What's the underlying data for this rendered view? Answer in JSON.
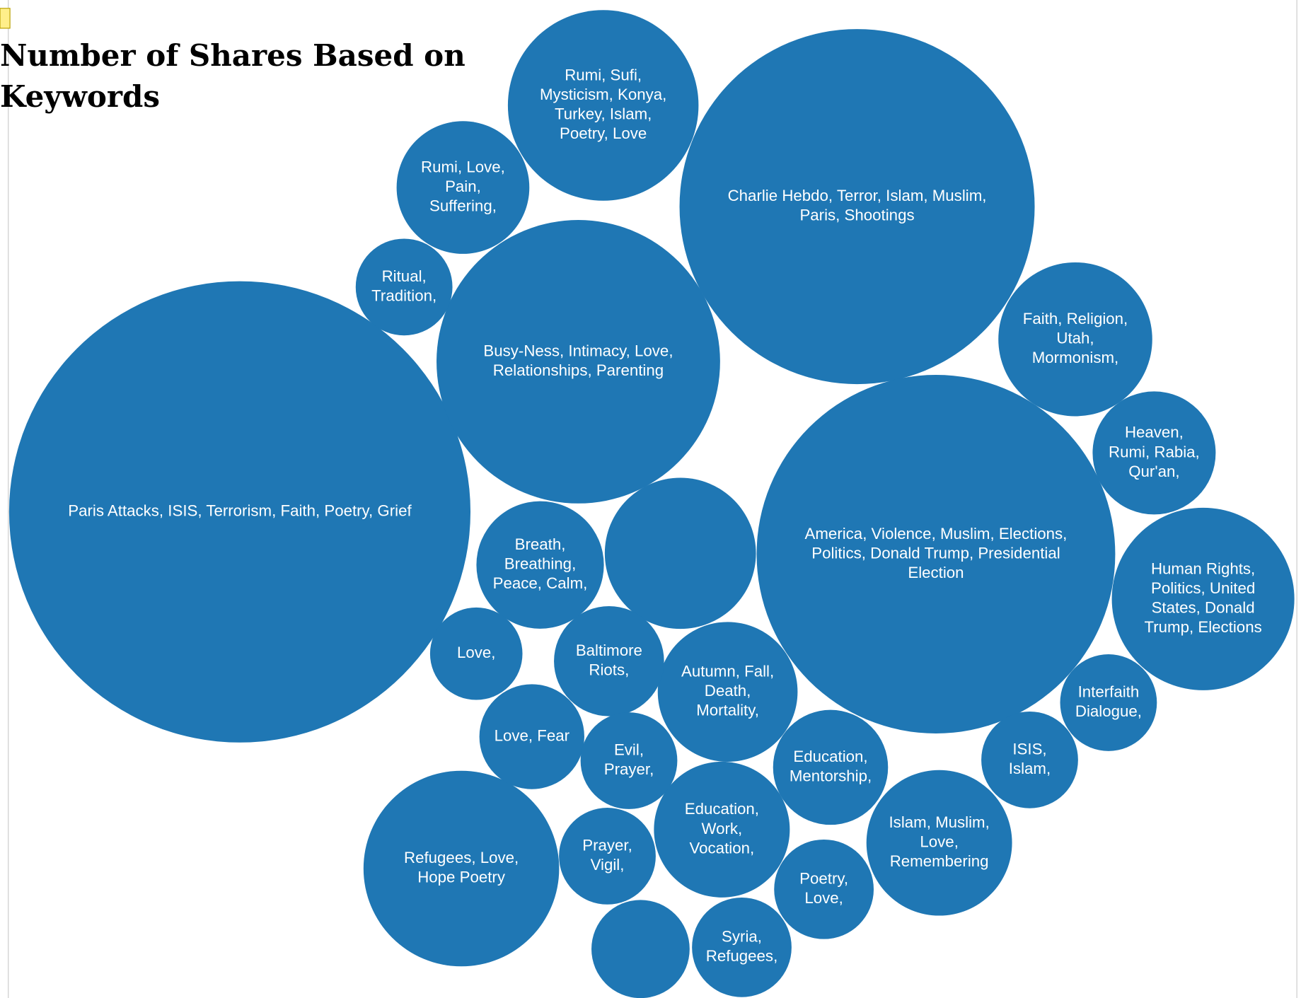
{
  "chart_data": {
    "type": "bubble",
    "title": "Number of Shares Based on Keywords",
    "color": "#1f77b4",
    "categories": [
      [
        "Paris Attacks, ISIS, Terrorism, Faith, Poetry, Grief"
      ],
      [
        "Charlie Hebdo, Terror, Islam, Muslim,",
        "Paris, Shootings"
      ],
      [
        "America, Violence, Muslim, Elections,",
        "Politics, Donald Trump, Presidential",
        "Election"
      ],
      [
        "Busy-Ness, Intimacy, Love,",
        "Relationships, Parenting"
      ],
      [
        "Rumi, Sufi,",
        "Mysticism, Konya,",
        "Turkey, Islam,",
        "Poetry, Love"
      ],
      [
        "Refugees, Love,",
        "Hope Poetry"
      ],
      [
        "Human Rights,",
        "Politics, United",
        "States, Donald",
        "Trump, Elections"
      ],
      null,
      [
        "Faith, Religion,",
        "Utah,",
        "Mormonism,"
      ],
      [
        "Islam, Muslim,",
        "Love,",
        "Remembering"
      ],
      [
        "Autumn, Fall,",
        "Death,",
        "Mortality,"
      ],
      [
        "Education,",
        "Work,",
        "Vocation,"
      ],
      [
        "Rumi, Love,",
        "Pain,",
        "Suffering,"
      ],
      [
        "Breath,",
        "Breathing,",
        "Peace, Calm,"
      ],
      [
        "Heaven,",
        "Rumi, Rabia,",
        "Qur'an,"
      ],
      [
        "Education,",
        "Mentorship,"
      ],
      [
        "Baltimore",
        "Riots,"
      ],
      [
        "Love, Fear"
      ],
      [
        "Syria,",
        "Refugees,"
      ],
      [
        "Poetry,",
        "Love,"
      ],
      [
        "Prayer,",
        "Vigil,"
      ],
      null,
      [
        "Ritual,",
        "Tradition,"
      ],
      [
        "Interfaith",
        "Dialogue,"
      ],
      [
        "Evil,",
        "Prayer,"
      ],
      [
        "ISIS,",
        "Islam,"
      ],
      [
        "Love,"
      ]
    ],
    "values": [
      773,
      458,
      467,
      292,
      132,
      139,
      121,
      83,
      86,
      77,
      71,
      67,
      64,
      59,
      55,
      48,
      44,
      40,
      36,
      36,
      34,
      35,
      34,
      34,
      34,
      34,
      31
    ]
  }
}
